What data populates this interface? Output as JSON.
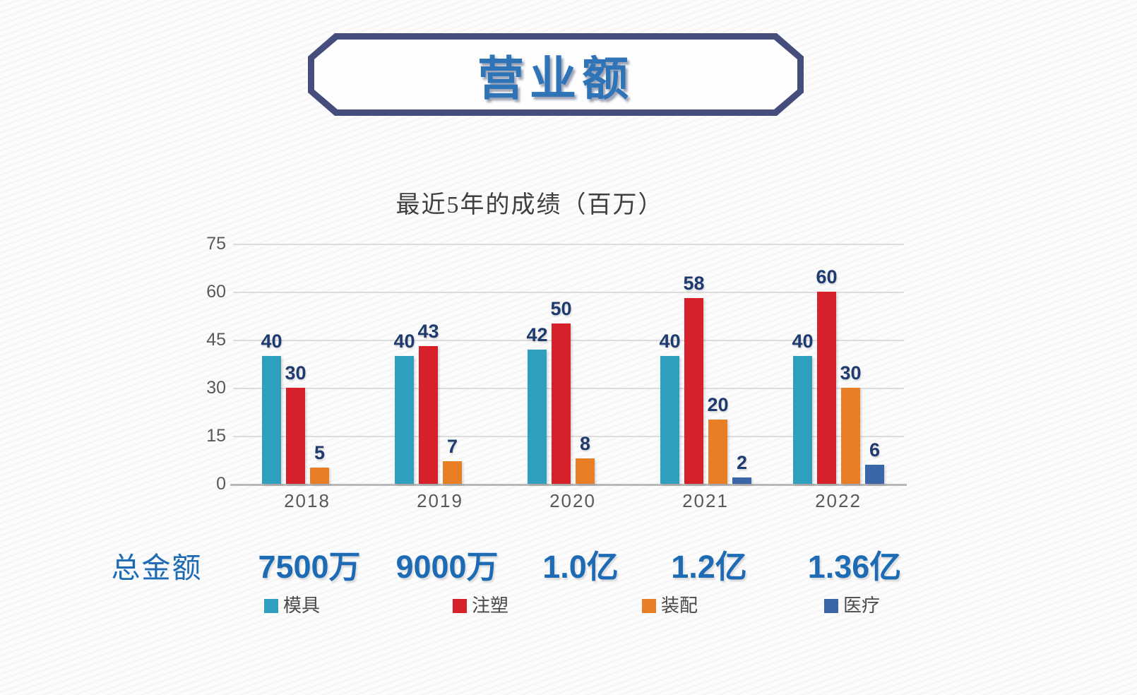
{
  "page": {
    "badge_title": "营业额"
  },
  "colors": {
    "badge_border": "#454D7D",
    "title_blue": "#2E74B6",
    "value_label_navy": "#1E3A6E",
    "axis_gray": "#595959",
    "grid_gray": "#DCDCDC",
    "baseline_gray": "#B9B9B9",
    "chart_title_gray": "#3F3F3F",
    "legend_text_gray": "#4A4A4A",
    "totals_blue": "#1D6BB4"
  },
  "chart_data": {
    "type": "bar",
    "title": "最近5年的成绩（百万）",
    "categories": [
      "2018",
      "2019",
      "2020",
      "2021",
      "2022"
    ],
    "series": [
      {
        "name": "模具",
        "color": "#2E9FBE",
        "values": [
          40,
          40,
          42,
          40,
          40
        ]
      },
      {
        "name": "注塑",
        "color": "#D6212B",
        "values": [
          30,
          43,
          50,
          58,
          60
        ]
      },
      {
        "name": "装配",
        "color": "#E87F26",
        "values": [
          5,
          7,
          8,
          20,
          30
        ]
      },
      {
        "name": "医疗",
        "color": "#3A66A8",
        "values": [
          null,
          null,
          null,
          2,
          6
        ]
      }
    ],
    "ylim": [
      0,
      75
    ],
    "yticks": [
      0,
      15,
      30,
      45,
      60,
      75
    ],
    "grid": true,
    "legend_position": "bottom",
    "value_labels": true
  },
  "totals": {
    "label": "总金额",
    "values": [
      "7500万",
      "9000万",
      "1.0亿",
      "1.2亿",
      "1.36亿"
    ]
  }
}
